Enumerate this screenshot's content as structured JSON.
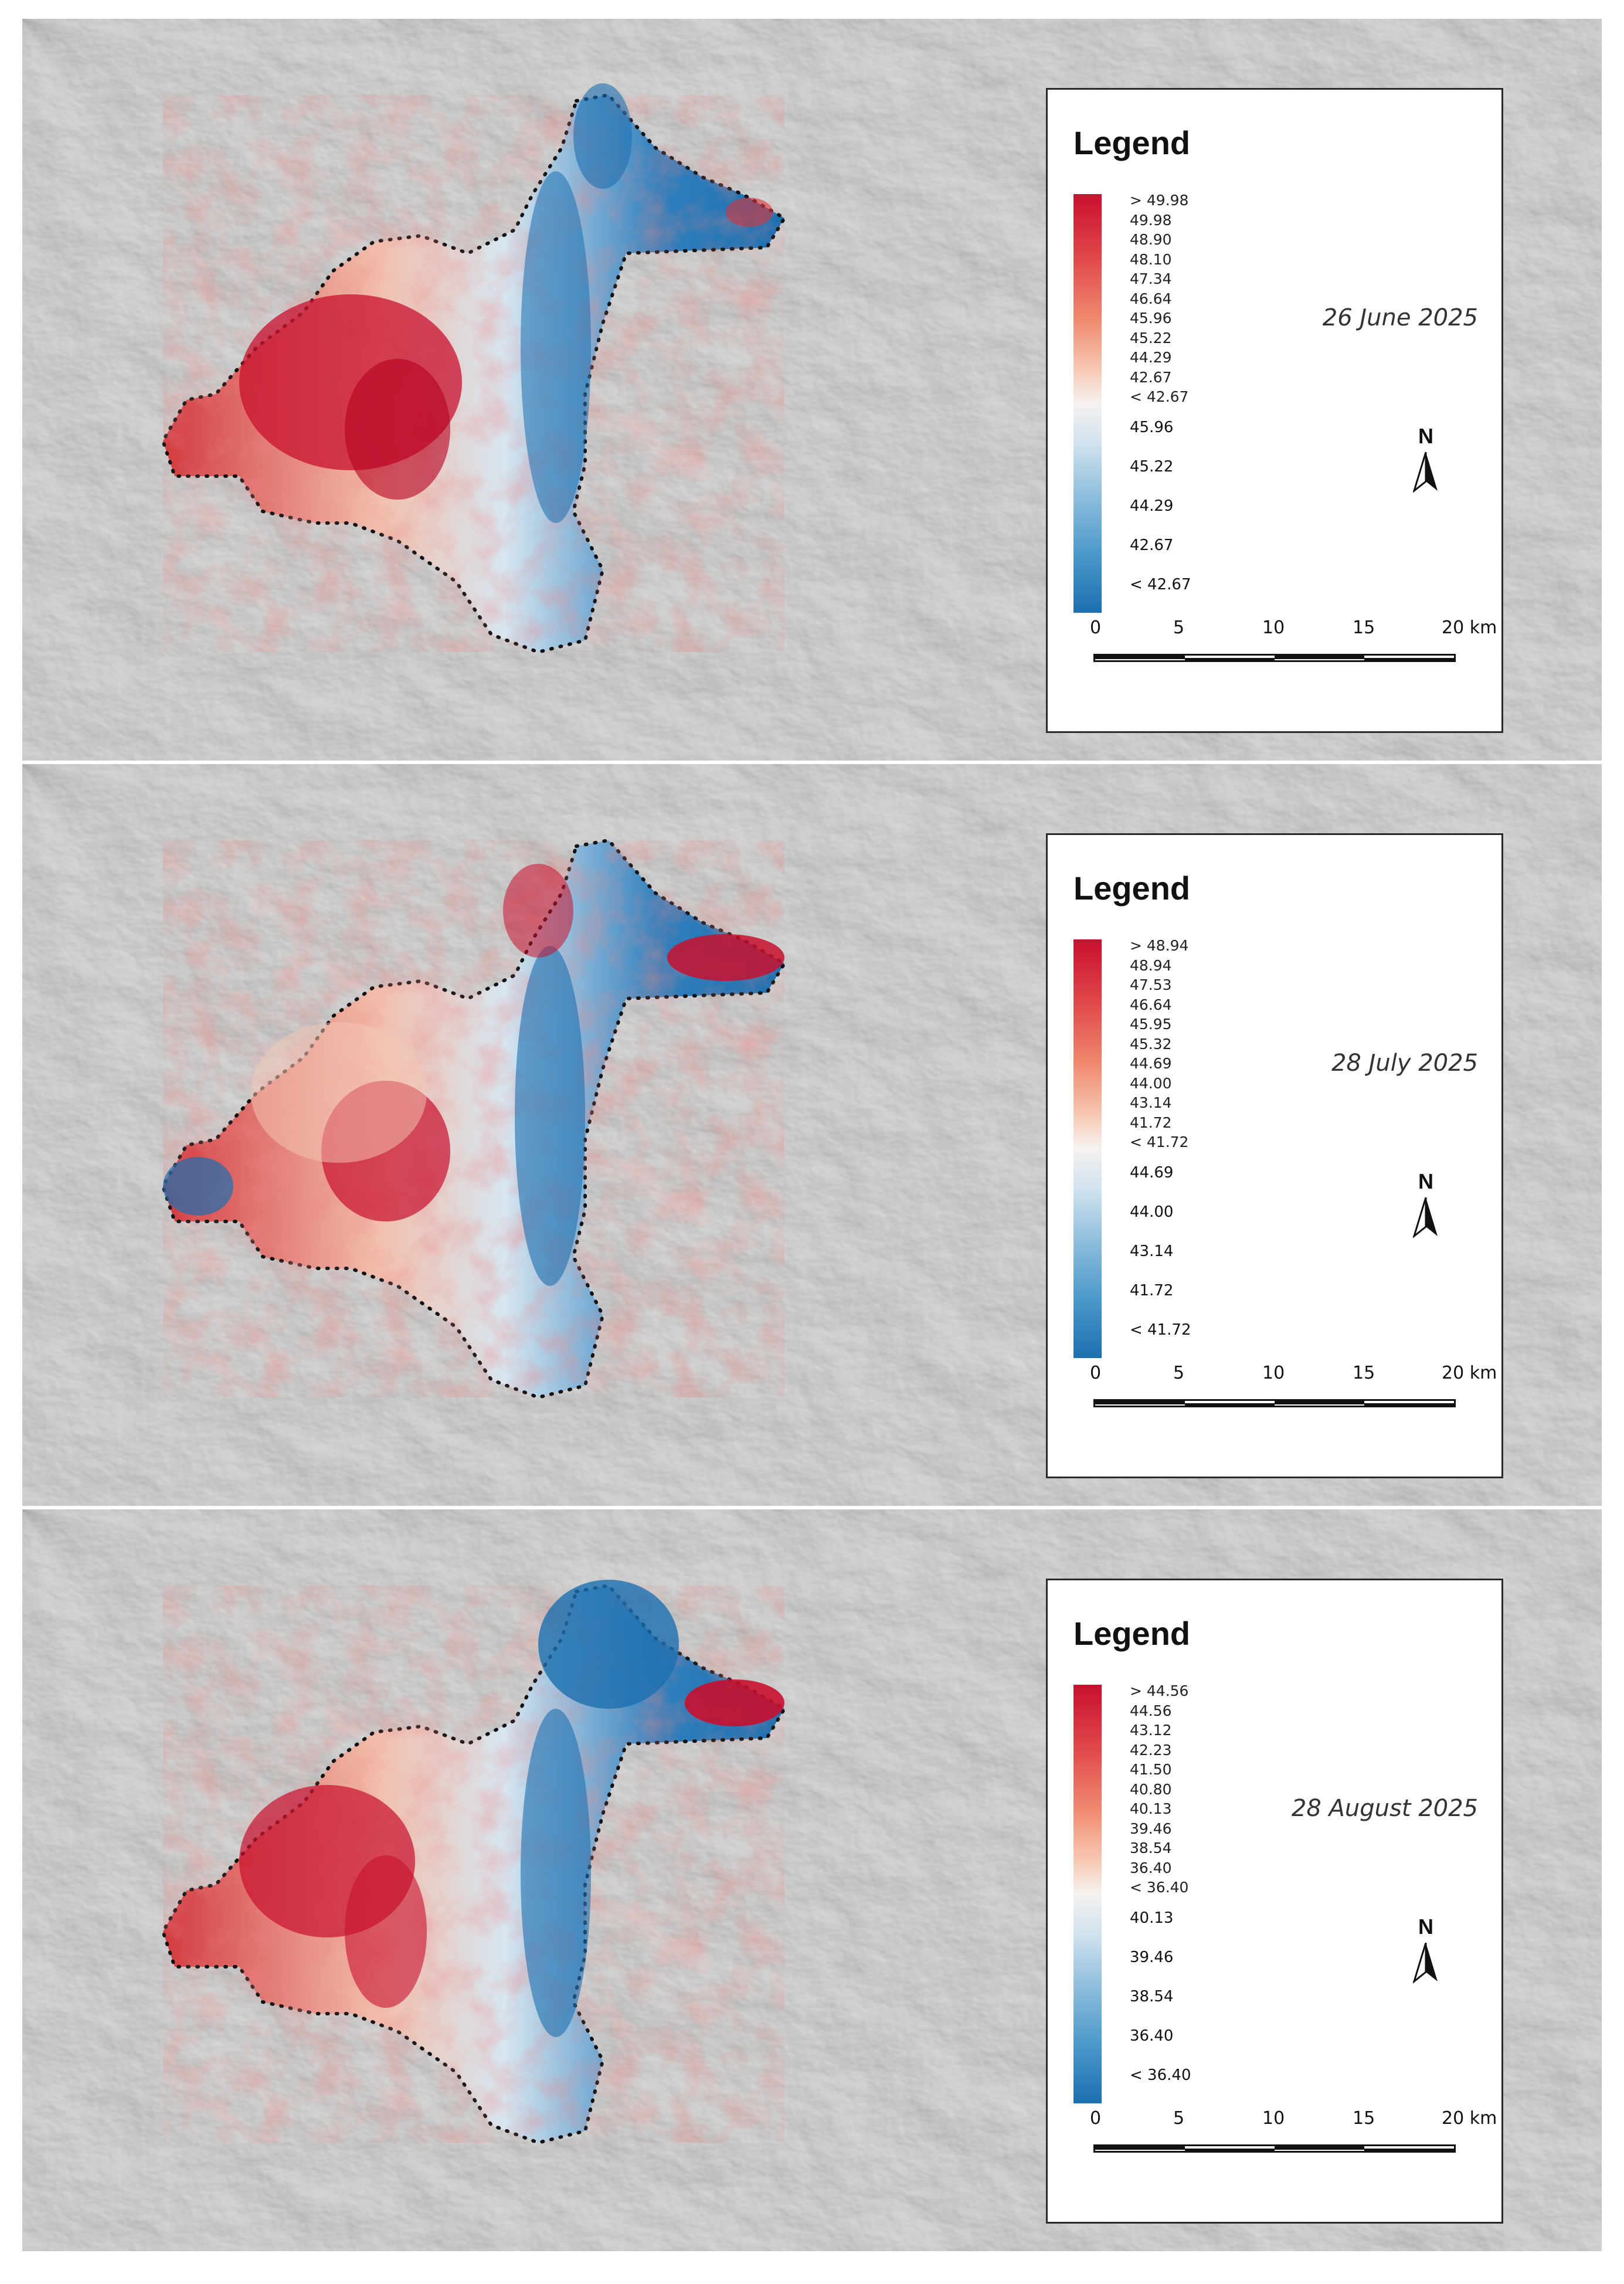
{
  "panels": [
    {
      "legend_title": "Legend",
      "ramp_labels": [
        "> 49.98",
        "49.98",
        "48.90",
        "48.10",
        "47.34",
        "46.64",
        "45.96",
        "45.22",
        "44.29",
        "42.67",
        "< 42.67"
      ],
      "point_labels": [
        "45.96",
        "45.22",
        "44.29",
        "42.67",
        "< 42.67"
      ],
      "date": "26 June 2025",
      "north": "N"
    },
    {
      "legend_title": "Legend",
      "ramp_labels": [
        "> 48.94",
        "48.94",
        "47.53",
        "46.64",
        "45.95",
        "45.32",
        "44.69",
        "44.00",
        "43.14",
        "41.72",
        "< 41.72"
      ],
      "point_labels": [
        "44.69",
        "44.00",
        "43.14",
        "41.72",
        "< 41.72"
      ],
      "date": "28 July 2025",
      "north": "N"
    },
    {
      "legend_title": "Legend",
      "ramp_labels": [
        "> 44.56",
        "44.56",
        "43.12",
        "42.23",
        "41.50",
        "40.80",
        "40.13",
        "39.46",
        "38.54",
        "36.40",
        "< 36.40"
      ],
      "point_labels": [
        "40.13",
        "39.46",
        "38.54",
        "36.40",
        "< 36.40"
      ],
      "date": "28 August 2025",
      "north": "N"
    }
  ],
  "scale_bar": {
    "ticks": [
      "0",
      "5",
      "10",
      "15",
      "20 km"
    ]
  },
  "colors": {
    "hot": "#c8102e",
    "cool": "#1c6fb0",
    "neutral": "#f6f2f0",
    "terrain": "#b4b4b4"
  }
}
